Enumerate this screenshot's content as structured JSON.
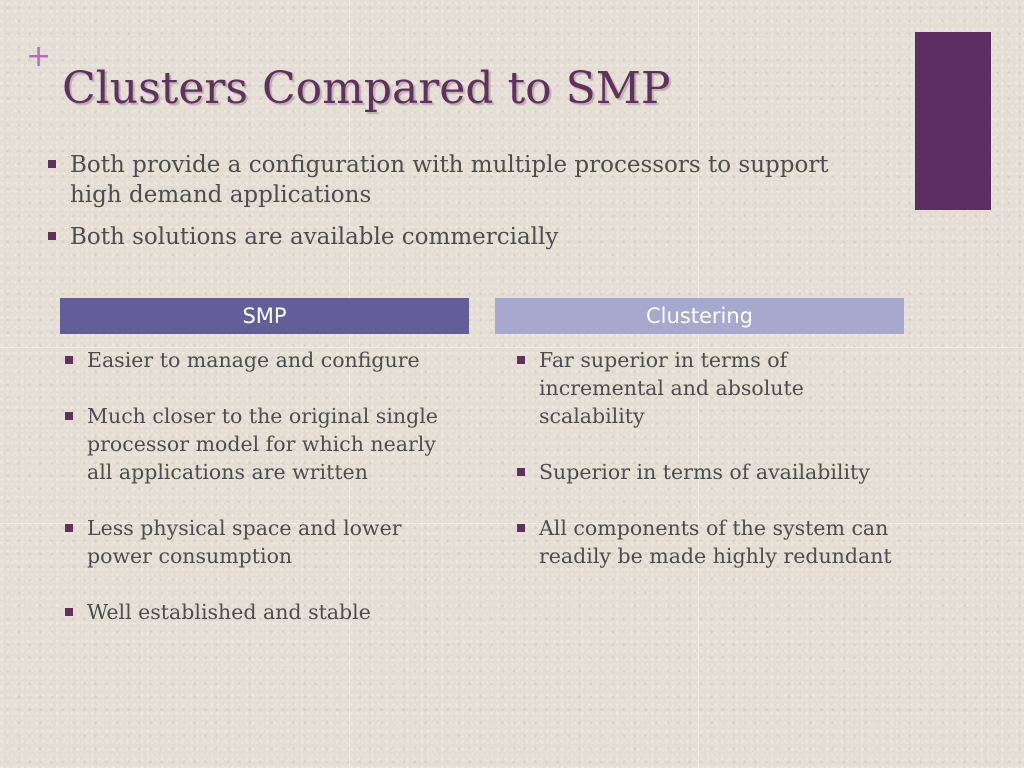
{
  "slide": {
    "title": "Clusters Compared to SMP",
    "plus_symbol": "+",
    "intro_bullets": [
      "Both provide a configuration with multiple processors to support high demand applications",
      "Both solutions are available commercially"
    ]
  },
  "comparison": {
    "smp": {
      "header": "SMP",
      "items": [
        "Easier to manage and configure",
        "Much closer to the original single processor model for which nearly all applications are written",
        "Less physical space and lower power consumption",
        "Well established and stable"
      ]
    },
    "clustering": {
      "header": "Clustering",
      "items": [
        "Far superior in terms of incremental and absolute scalability",
        "Superior in terms of availability",
        "All components of the system can readily be made highly redundant"
      ]
    }
  },
  "colors": {
    "title": "#60305e",
    "accent_block": "#5e2d63",
    "smp_header": "#635e9a",
    "clustering_header": "#a6a8cd",
    "bullet": "#60305e",
    "plus": "#b06cc9"
  },
  "icons": {
    "bullet": "square-bullet-icon",
    "plus": "plus-icon"
  }
}
